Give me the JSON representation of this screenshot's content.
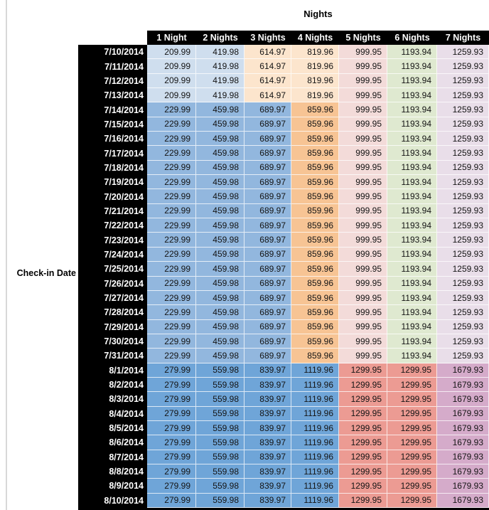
{
  "chart_data": {
    "type": "table",
    "title": "Nights",
    "row_axis_label": "Check-in Date",
    "columns": [
      "1 Night",
      "2 Nights",
      "3 Nights",
      "4 Nights",
      "5 Nights",
      "6 Nights",
      "7 Nights"
    ],
    "header_bg": "#000000",
    "header_text_color": "#ffffff",
    "date_column_bg": "#000000",
    "date_column_text_color": "#ffffff",
    "value_text_color": "#141414",
    "gridline_color": "rgba(255,255,255,0.75)",
    "page_edge_color": "#d8d8d8",
    "band_colors": {
      "early_july": [
        "#cfdeee",
        "#cfdeee",
        "#fce5cd",
        "#fce5cd",
        "#f3dbd9",
        "#dfe9d0",
        "#e9dee9"
      ],
      "mid_july": [
        "#92b7de",
        "#92b7de",
        "#92b7de",
        "#f7c494",
        "#f3dbd9",
        "#dfe9d0",
        "#e9dee9"
      ],
      "august": [
        "#6fa5d8",
        "#6fa5d8",
        "#6fa5d8",
        "#6fa5d8",
        "#ec9b93",
        "#ec9b93",
        "#d5abca"
      ]
    },
    "rows": [
      {
        "date": "7/10/2014",
        "band": "early_july",
        "values": [
          209.99,
          419.98,
          614.97,
          819.96,
          999.95,
          1193.94,
          1259.93
        ]
      },
      {
        "date": "7/11/2014",
        "band": "early_july",
        "values": [
          209.99,
          419.98,
          614.97,
          819.96,
          999.95,
          1193.94,
          1259.93
        ]
      },
      {
        "date": "7/12/2014",
        "band": "early_july",
        "values": [
          209.99,
          419.98,
          614.97,
          819.96,
          999.95,
          1193.94,
          1259.93
        ]
      },
      {
        "date": "7/13/2014",
        "band": "early_july",
        "values": [
          209.99,
          419.98,
          614.97,
          819.96,
          999.95,
          1193.94,
          1259.93
        ]
      },
      {
        "date": "7/14/2014",
        "band": "mid_july",
        "values": [
          229.99,
          459.98,
          689.97,
          859.96,
          999.95,
          1193.94,
          1259.93
        ]
      },
      {
        "date": "7/15/2014",
        "band": "mid_july",
        "values": [
          229.99,
          459.98,
          689.97,
          859.96,
          999.95,
          1193.94,
          1259.93
        ]
      },
      {
        "date": "7/16/2014",
        "band": "mid_july",
        "values": [
          229.99,
          459.98,
          689.97,
          859.96,
          999.95,
          1193.94,
          1259.93
        ]
      },
      {
        "date": "7/17/2014",
        "band": "mid_july",
        "values": [
          229.99,
          459.98,
          689.97,
          859.96,
          999.95,
          1193.94,
          1259.93
        ]
      },
      {
        "date": "7/18/2014",
        "band": "mid_july",
        "values": [
          229.99,
          459.98,
          689.97,
          859.96,
          999.95,
          1193.94,
          1259.93
        ]
      },
      {
        "date": "7/19/2014",
        "band": "mid_july",
        "values": [
          229.99,
          459.98,
          689.97,
          859.96,
          999.95,
          1193.94,
          1259.93
        ]
      },
      {
        "date": "7/20/2014",
        "band": "mid_july",
        "values": [
          229.99,
          459.98,
          689.97,
          859.96,
          999.95,
          1193.94,
          1259.93
        ]
      },
      {
        "date": "7/21/2014",
        "band": "mid_july",
        "values": [
          229.99,
          459.98,
          689.97,
          859.96,
          999.95,
          1193.94,
          1259.93
        ]
      },
      {
        "date": "7/22/2014",
        "band": "mid_july",
        "values": [
          229.99,
          459.98,
          689.97,
          859.96,
          999.95,
          1193.94,
          1259.93
        ]
      },
      {
        "date": "7/23/2014",
        "band": "mid_july",
        "values": [
          229.99,
          459.98,
          689.97,
          859.96,
          999.95,
          1193.94,
          1259.93
        ]
      },
      {
        "date": "7/24/2014",
        "band": "mid_july",
        "values": [
          229.99,
          459.98,
          689.97,
          859.96,
          999.95,
          1193.94,
          1259.93
        ]
      },
      {
        "date": "7/25/2014",
        "band": "mid_july",
        "values": [
          229.99,
          459.98,
          689.97,
          859.96,
          999.95,
          1193.94,
          1259.93
        ]
      },
      {
        "date": "7/26/2014",
        "band": "mid_july",
        "values": [
          229.99,
          459.98,
          689.97,
          859.96,
          999.95,
          1193.94,
          1259.93
        ]
      },
      {
        "date": "7/27/2014",
        "band": "mid_july",
        "values": [
          229.99,
          459.98,
          689.97,
          859.96,
          999.95,
          1193.94,
          1259.93
        ]
      },
      {
        "date": "7/28/2014",
        "band": "mid_july",
        "values": [
          229.99,
          459.98,
          689.97,
          859.96,
          999.95,
          1193.94,
          1259.93
        ]
      },
      {
        "date": "7/29/2014",
        "band": "mid_july",
        "values": [
          229.99,
          459.98,
          689.97,
          859.96,
          999.95,
          1193.94,
          1259.93
        ]
      },
      {
        "date": "7/30/2014",
        "band": "mid_july",
        "values": [
          229.99,
          459.98,
          689.97,
          859.96,
          999.95,
          1193.94,
          1259.93
        ]
      },
      {
        "date": "7/31/2014",
        "band": "mid_july",
        "values": [
          229.99,
          459.98,
          689.97,
          859.96,
          999.95,
          1193.94,
          1259.93
        ]
      },
      {
        "date": "8/1/2014",
        "band": "august",
        "values": [
          279.99,
          559.98,
          839.97,
          1119.96,
          1299.95,
          1299.95,
          1679.93
        ]
      },
      {
        "date": "8/2/2014",
        "band": "august",
        "values": [
          279.99,
          559.98,
          839.97,
          1119.96,
          1299.95,
          1299.95,
          1679.93
        ]
      },
      {
        "date": "8/3/2014",
        "band": "august",
        "values": [
          279.99,
          559.98,
          839.97,
          1119.96,
          1299.95,
          1299.95,
          1679.93
        ]
      },
      {
        "date": "8/4/2014",
        "band": "august",
        "values": [
          279.99,
          559.98,
          839.97,
          1119.96,
          1299.95,
          1299.95,
          1679.93
        ]
      },
      {
        "date": "8/5/2014",
        "band": "august",
        "values": [
          279.99,
          559.98,
          839.97,
          1119.96,
          1299.95,
          1299.95,
          1679.93
        ]
      },
      {
        "date": "8/6/2014",
        "band": "august",
        "values": [
          279.99,
          559.98,
          839.97,
          1119.96,
          1299.95,
          1299.95,
          1679.93
        ]
      },
      {
        "date": "8/7/2014",
        "band": "august",
        "values": [
          279.99,
          559.98,
          839.97,
          1119.96,
          1299.95,
          1299.95,
          1679.93
        ]
      },
      {
        "date": "8/8/2014",
        "band": "august",
        "values": [
          279.99,
          559.98,
          839.97,
          1119.96,
          1299.95,
          1299.95,
          1679.93
        ]
      },
      {
        "date": "8/9/2014",
        "band": "august",
        "values": [
          279.99,
          559.98,
          839.97,
          1119.96,
          1299.95,
          1299.95,
          1679.93
        ]
      },
      {
        "date": "8/10/2014",
        "band": "august",
        "values": [
          279.99,
          559.98,
          839.97,
          1119.96,
          1299.95,
          1299.95,
          1679.93
        ]
      }
    ]
  }
}
